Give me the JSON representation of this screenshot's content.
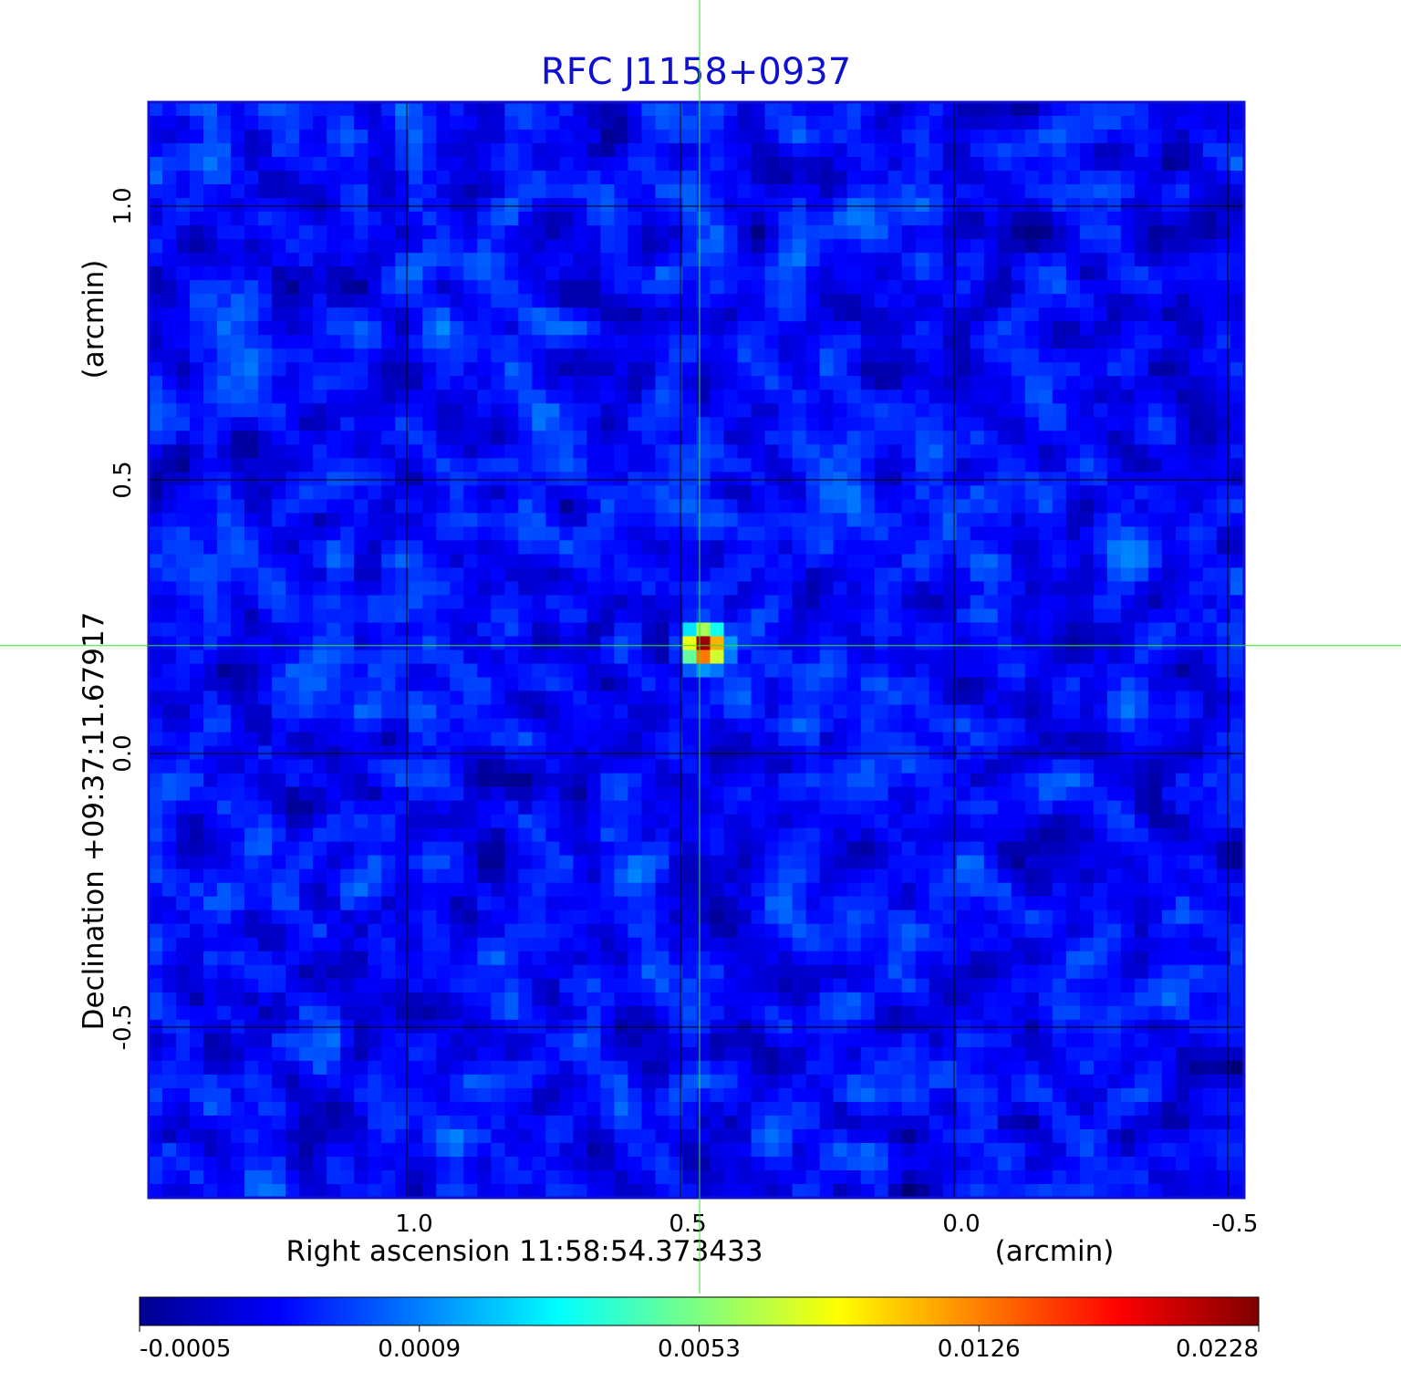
{
  "chart_data": {
    "type": "image",
    "title": "RFC J1158+0937",
    "xlabel": "Right ascension  11:58:54.373433",
    "xunit": "(arcmin)",
    "ylabel": "Declination  +09:37:11.67917",
    "yunit": "(arcmin)",
    "xlim": [
      1.4717,
      -0.53
    ],
    "xticks": [
      {
        "value": 1.0,
        "label": "1.0"
      },
      0.5,
      {
        "value": 0.0,
        "label": "0.0"
      },
      -0.5
    ],
    "ylim": [
      -0.8117,
      1.19
    ],
    "yticks": [
      {
        "value": 1.0,
        "label": "1.0"
      },
      0.5,
      {
        "value": 0.0,
        "label": "0.0"
      },
      -0.5
    ],
    "grid": true,
    "crosshair": [
      0.465,
      0.197
    ],
    "colormap": "jet",
    "colorbar_ticks": [
      {
        "value": -0.0005,
        "label": "-0.0005"
      },
      0.0009,
      0.0053,
      0.0126,
      0.0228
    ]
  }
}
